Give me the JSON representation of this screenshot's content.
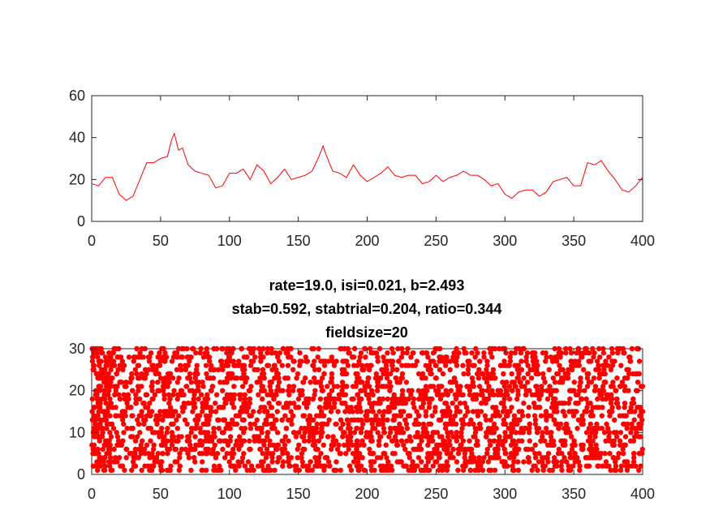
{
  "chart_data": [
    {
      "type": "line",
      "title": "",
      "xlabel": "",
      "ylabel": "",
      "xlim": [
        0,
        400
      ],
      "ylim": [
        0,
        60
      ],
      "xticks": [
        0,
        50,
        100,
        150,
        200,
        250,
        300,
        350,
        400
      ],
      "yticks": [
        0,
        20,
        40,
        60
      ],
      "grid": false,
      "series": [
        {
          "color": "#ff0000",
          "x": [
            0,
            5,
            10,
            15,
            20,
            25,
            30,
            35,
            40,
            45,
            50,
            55,
            58,
            60,
            63,
            66,
            70,
            75,
            80,
            85,
            90,
            95,
            100,
            105,
            110,
            115,
            120,
            125,
            130,
            135,
            140,
            145,
            150,
            155,
            160,
            165,
            168,
            170,
            175,
            180,
            185,
            190,
            195,
            200,
            205,
            210,
            215,
            220,
            225,
            230,
            235,
            240,
            245,
            250,
            255,
            260,
            265,
            270,
            275,
            280,
            285,
            290,
            295,
            300,
            305,
            310,
            315,
            320,
            325,
            330,
            335,
            340,
            345,
            350,
            355,
            360,
            365,
            370,
            375,
            380,
            385,
            390,
            395,
            400
          ],
          "y": [
            18,
            17,
            21,
            21,
            13,
            10,
            12,
            20,
            28,
            28,
            30,
            31,
            39,
            42,
            34,
            35,
            27,
            24,
            23,
            22,
            16,
            17,
            23,
            23,
            25,
            20,
            27,
            24,
            18,
            21,
            25,
            20,
            21,
            22,
            24,
            31,
            36,
            32,
            24,
            23,
            21,
            27,
            22,
            19,
            21,
            23,
            26,
            22,
            21,
            22,
            22,
            18,
            19,
            22,
            19,
            21,
            22,
            24,
            22,
            22,
            20,
            17,
            18,
            13,
            11,
            14,
            15,
            15,
            12,
            14,
            19,
            20,
            21,
            17,
            17,
            28,
            27,
            29,
            24,
            20,
            15,
            14,
            17,
            21
          ]
        }
      ]
    },
    {
      "type": "scatter",
      "title": [
        "rate=19.0, isi=0.021, b=2.493",
        "stab=0.592, stabtrial=0.204, ratio=0.344",
        "fieldsize=20"
      ],
      "xlabel": "",
      "ylabel": "",
      "xlim": [
        0,
        400
      ],
      "ylim": [
        0,
        30
      ],
      "xticks": [
        0,
        50,
        100,
        150,
        200,
        250,
        300,
        350,
        400
      ],
      "yticks": [
        0,
        10,
        20,
        30
      ],
      "grid": false,
      "marker": "filled-circle",
      "series": [
        {
          "color": "#ff0000",
          "trials": [
            1,
            30
          ],
          "x_range": [
            0,
            400
          ],
          "description_rate_per_trial": 19.0
        }
      ]
    }
  ]
}
